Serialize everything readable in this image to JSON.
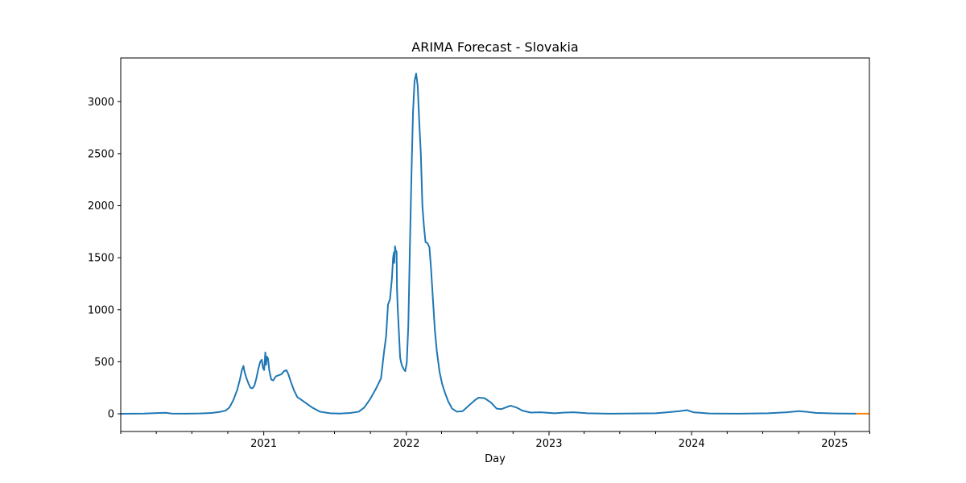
{
  "chart_data": {
    "type": "line",
    "title": "ARIMA Forecast - Slovakia",
    "xlabel": "Day",
    "ylabel": "",
    "xlim": [
      "2020-01-01",
      "2025-03-31"
    ],
    "ylim": [
      -170,
      3420
    ],
    "grid": false,
    "legend": "none",
    "x_ticks": [
      {
        "date": "2021-01-01",
        "label": "2021"
      },
      {
        "date": "2022-01-01",
        "label": "2022"
      },
      {
        "date": "2023-01-01",
        "label": "2023"
      },
      {
        "date": "2024-01-01",
        "label": "2024"
      },
      {
        "date": "2025-01-01",
        "label": "2025"
      }
    ],
    "x_minor_ticks": [
      "2020-01-01",
      "2020-04-01",
      "2020-07-01",
      "2020-10-01",
      "2021-04-01",
      "2021-07-01",
      "2021-10-01",
      "2022-04-01",
      "2022-07-01",
      "2022-10-01",
      "2023-04-01",
      "2023-07-01",
      "2023-10-01",
      "2024-04-01",
      "2024-07-01",
      "2024-10-01",
      "2025-04-01"
    ],
    "y_ticks": [
      0,
      500,
      1000,
      1500,
      2000,
      2500,
      3000
    ],
    "series": [
      {
        "color": "#1f77b4",
        "points": [
          [
            "2020-01-01",
            0
          ],
          [
            "2020-03-01",
            2
          ],
          [
            "2020-04-10",
            8
          ],
          [
            "2020-04-25",
            10
          ],
          [
            "2020-05-10",
            2
          ],
          [
            "2020-06-15",
            1
          ],
          [
            "2020-07-20",
            3
          ],
          [
            "2020-08-20",
            8
          ],
          [
            "2020-09-10",
            18
          ],
          [
            "2020-09-25",
            30
          ],
          [
            "2020-10-05",
            60
          ],
          [
            "2020-10-15",
            130
          ],
          [
            "2020-10-25",
            230
          ],
          [
            "2020-11-01",
            330
          ],
          [
            "2020-11-06",
            420
          ],
          [
            "2020-11-10",
            460
          ],
          [
            "2020-11-13",
            400
          ],
          [
            "2020-11-18",
            340
          ],
          [
            "2020-11-23",
            290
          ],
          [
            "2020-11-28",
            250
          ],
          [
            "2020-12-03",
            245
          ],
          [
            "2020-12-08",
            270
          ],
          [
            "2020-12-13",
            340
          ],
          [
            "2020-12-18",
            430
          ],
          [
            "2020-12-23",
            500
          ],
          [
            "2020-12-27",
            520
          ],
          [
            "2020-12-30",
            440
          ],
          [
            "2021-01-02",
            420
          ],
          [
            "2021-01-05",
            590
          ],
          [
            "2021-01-07",
            470
          ],
          [
            "2021-01-09",
            550
          ],
          [
            "2021-01-12",
            530
          ],
          [
            "2021-01-15",
            420
          ],
          [
            "2021-01-20",
            330
          ],
          [
            "2021-01-25",
            320
          ],
          [
            "2021-02-01",
            360
          ],
          [
            "2021-02-08",
            370
          ],
          [
            "2021-02-15",
            380
          ],
          [
            "2021-02-22",
            410
          ],
          [
            "2021-02-28",
            420
          ],
          [
            "2021-03-05",
            380
          ],
          [
            "2021-03-12",
            300
          ],
          [
            "2021-03-20",
            220
          ],
          [
            "2021-03-28",
            160
          ],
          [
            "2021-04-05",
            140
          ],
          [
            "2021-04-20",
            100
          ],
          [
            "2021-05-05",
            60
          ],
          [
            "2021-05-25",
            20
          ],
          [
            "2021-06-20",
            5
          ],
          [
            "2021-07-15",
            2
          ],
          [
            "2021-08-10",
            8
          ],
          [
            "2021-09-01",
            20
          ],
          [
            "2021-09-15",
            60
          ],
          [
            "2021-09-30",
            140
          ],
          [
            "2021-10-15",
            240
          ],
          [
            "2021-10-28",
            340
          ],
          [
            "2021-11-05",
            600
          ],
          [
            "2021-11-10",
            740
          ],
          [
            "2021-11-15",
            1050
          ],
          [
            "2021-11-20",
            1100
          ],
          [
            "2021-11-25",
            1300
          ],
          [
            "2021-11-28",
            1500
          ],
          [
            "2021-11-30",
            1550
          ],
          [
            "2021-12-01",
            1450
          ],
          [
            "2021-12-03",
            1610
          ],
          [
            "2021-12-05",
            1560
          ],
          [
            "2021-12-07",
            1560
          ],
          [
            "2021-12-08",
            1200
          ],
          [
            "2021-12-10",
            1000
          ],
          [
            "2021-12-12",
            850
          ],
          [
            "2021-12-14",
            700
          ],
          [
            "2021-12-16",
            540
          ],
          [
            "2021-12-20",
            470
          ],
          [
            "2021-12-25",
            430
          ],
          [
            "2021-12-29",
            410
          ],
          [
            "2022-01-02",
            490
          ],
          [
            "2022-01-06",
            850
          ],
          [
            "2022-01-10",
            1600
          ],
          [
            "2022-01-14",
            2300
          ],
          [
            "2022-01-18",
            2900
          ],
          [
            "2022-01-22",
            3200
          ],
          [
            "2022-01-26",
            3270
          ],
          [
            "2022-01-30",
            3150
          ],
          [
            "2022-02-03",
            2800
          ],
          [
            "2022-02-07",
            2500
          ],
          [
            "2022-02-11",
            2000
          ],
          [
            "2022-02-15",
            1800
          ],
          [
            "2022-02-19",
            1650
          ],
          [
            "2022-02-24",
            1640
          ],
          [
            "2022-03-01",
            1600
          ],
          [
            "2022-03-05",
            1400
          ],
          [
            "2022-03-10",
            1100
          ],
          [
            "2022-03-15",
            800
          ],
          [
            "2022-03-20",
            600
          ],
          [
            "2022-03-27",
            400
          ],
          [
            "2022-04-03",
            280
          ],
          [
            "2022-04-10",
            200
          ],
          [
            "2022-04-18",
            120
          ],
          [
            "2022-04-28",
            50
          ],
          [
            "2022-05-10",
            20
          ],
          [
            "2022-05-25",
            25
          ],
          [
            "2022-06-10",
            80
          ],
          [
            "2022-06-25",
            130
          ],
          [
            "2022-07-05",
            155
          ],
          [
            "2022-07-20",
            150
          ],
          [
            "2022-08-05",
            110
          ],
          [
            "2022-08-20",
            50
          ],
          [
            "2022-09-01",
            45
          ],
          [
            "2022-09-15",
            65
          ],
          [
            "2022-09-25",
            78
          ],
          [
            "2022-10-10",
            60
          ],
          [
            "2022-10-25",
            30
          ],
          [
            "2022-11-15",
            12
          ],
          [
            "2022-12-10",
            15
          ],
          [
            "2023-01-15",
            5
          ],
          [
            "2023-02-10",
            12
          ],
          [
            "2023-03-05",
            15
          ],
          [
            "2023-04-10",
            5
          ],
          [
            "2023-06-01",
            1
          ],
          [
            "2023-08-10",
            3
          ],
          [
            "2023-10-01",
            5
          ],
          [
            "2023-11-01",
            15
          ],
          [
            "2023-12-01",
            25
          ],
          [
            "2023-12-20",
            35
          ],
          [
            "2024-01-05",
            15
          ],
          [
            "2024-02-15",
            3
          ],
          [
            "2024-05-01",
            1
          ],
          [
            "2024-07-15",
            5
          ],
          [
            "2024-09-01",
            15
          ],
          [
            "2024-10-01",
            25
          ],
          [
            "2024-10-20",
            20
          ],
          [
            "2024-11-15",
            8
          ],
          [
            "2025-01-01",
            3
          ],
          [
            "2025-02-25",
            1
          ]
        ]
      },
      {
        "color": "#ff7f0e",
        "points": [
          [
            "2025-02-25",
            1
          ],
          [
            "2025-03-31",
            1
          ]
        ]
      }
    ]
  }
}
